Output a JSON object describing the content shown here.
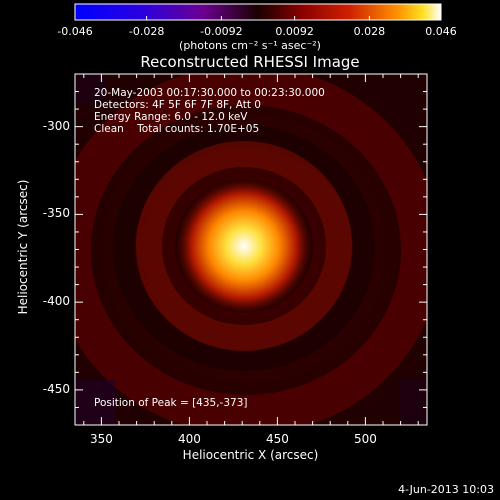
{
  "colorbar": {
    "ticks": [
      "-0.046",
      "-0.028",
      "-0.0092",
      "0.0092",
      "0.028",
      "0.046"
    ],
    "tick_values": [
      -0.046,
      -0.028,
      -0.0092,
      0.0092,
      0.028,
      0.046
    ],
    "range": [
      -0.046,
      0.046
    ],
    "units": "(photons cm⁻² s⁻¹ asec⁻²)"
  },
  "title": "Reconstructed RHESSI Image",
  "info": {
    "time_range": "20-May-2003 00:17:30.000 to 00:23:30.000",
    "detectors": "Detectors: 4F 5F 6F 7F 8F, Att 0",
    "energy": "Energy Range: 6.0 - 12.0 keV",
    "clean": "Clean    Total counts: 1.70E+05",
    "peak": "Position of Peak = [435,-373]"
  },
  "axes": {
    "xlabel": "Heliocentric X (arcsec)",
    "ylabel": "Heliocentric Y (arcsec)",
    "xticks": [
      "350",
      "400",
      "450",
      "500"
    ],
    "xtick_values": [
      350,
      400,
      450,
      500
    ],
    "yticks": [
      "-300",
      "-350",
      "-400",
      "-450"
    ],
    "ytick_values": [
      -300,
      -350,
      -400,
      -450
    ],
    "xlim": [
      335,
      535
    ],
    "ylim": [
      -470,
      -270
    ]
  },
  "datestamp": "4-Jun-2013 10:03",
  "chart_data": {
    "type": "heatmap",
    "title": "Reconstructed RHESSI Image",
    "xlabel": "Heliocentric X (arcsec)",
    "ylabel": "Heliocentric Y (arcsec)",
    "xlim": [
      335,
      535
    ],
    "ylim": [
      -470,
      -270
    ],
    "peak": [
      435,
      -373
    ],
    "colormap": "rhessi-hot",
    "value_range": [
      -0.046,
      0.046
    ]
  },
  "colors": {
    "background": "#000000",
    "frame": "#ffffff",
    "cmap": [
      "#0000ff",
      "#3a00c8",
      "#6a0080",
      "#3a0000",
      "#7a0000",
      "#c03000",
      "#ff8000",
      "#ffd000",
      "#ffffff"
    ]
  }
}
